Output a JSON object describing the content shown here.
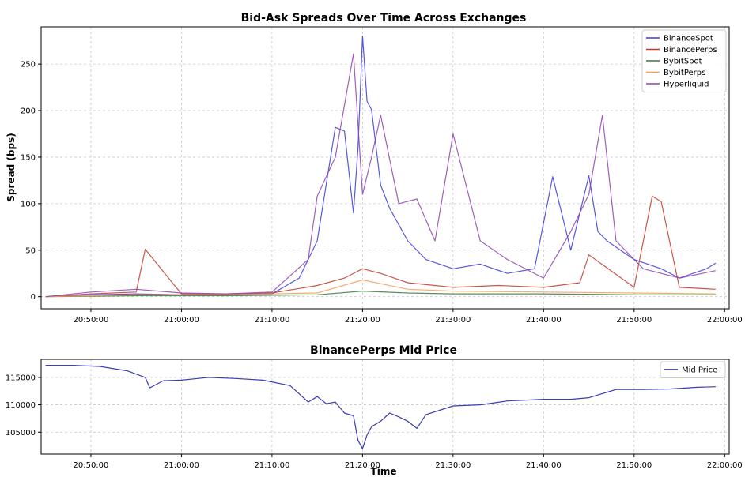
{
  "chart_data": [
    {
      "type": "line",
      "title": "Bid-Ask Spreads Over Time Across Exchanges",
      "xlabel": "",
      "ylabel": "Spread (bps)",
      "xlim": [
        "20:44:30",
        "22:00:30"
      ],
      "ylim": [
        -13,
        290
      ],
      "x_ticks": [
        "20:50:00",
        "21:00:00",
        "21:10:00",
        "21:20:00",
        "21:30:00",
        "21:40:00",
        "21:50:00",
        "22:00:00"
      ],
      "y_ticks": [
        0,
        50,
        100,
        150,
        200,
        250
      ],
      "grid": true,
      "legend_position": "top-right",
      "series": [
        {
          "name": "BinanceSpot",
          "color": "#3b3bd6",
          "x": [
            "20:45:00",
            "20:50:00",
            "20:55:00",
            "21:00:00",
            "21:05:00",
            "21:10:00",
            "21:13:00",
            "21:15:00",
            "21:17:00",
            "21:18:00",
            "21:19:00",
            "21:19:30",
            "21:20:00",
            "21:20:30",
            "21:21:00",
            "21:22:00",
            "21:23:00",
            "21:25:00",
            "21:27:00",
            "21:30:00",
            "21:33:00",
            "21:36:00",
            "21:39:00",
            "21:41:00",
            "21:43:00",
            "21:45:00",
            "21:46:00",
            "21:47:00",
            "21:50:00",
            "21:53:00",
            "21:55:00",
            "21:58:00",
            "21:59:00"
          ],
          "y": [
            0,
            2,
            3,
            2,
            2,
            3,
            20,
            60,
            182,
            178,
            90,
            160,
            280,
            210,
            201,
            120,
            95,
            60,
            40,
            30,
            35,
            25,
            30,
            129,
            50,
            130,
            70,
            60,
            40,
            30,
            20,
            30,
            36
          ]
        },
        {
          "name": "BinancePerps",
          "color": "#c0392b",
          "x": [
            "20:45:00",
            "20:50:00",
            "20:55:00",
            "20:56:00",
            "21:00:00",
            "21:05:00",
            "21:10:00",
            "21:15:00",
            "21:18:00",
            "21:20:00",
            "21:22:00",
            "21:25:00",
            "21:30:00",
            "21:35:00",
            "21:40:00",
            "21:44:00",
            "21:45:00",
            "21:50:00",
            "21:52:00",
            "21:53:00",
            "21:55:00",
            "21:59:00"
          ],
          "y": [
            0,
            3,
            5,
            51,
            3,
            3,
            4,
            12,
            20,
            30,
            25,
            15,
            10,
            12,
            10,
            15,
            45,
            10,
            108,
            102,
            10,
            8
          ]
        },
        {
          "name": "BybitSpot",
          "color": "#3a7a3a",
          "x": [
            "20:45:00",
            "20:55:00",
            "21:05:00",
            "21:15:00",
            "21:20:00",
            "21:25:00",
            "21:30:00",
            "21:40:00",
            "21:50:00",
            "21:59:00"
          ],
          "y": [
            0,
            1,
            1,
            2,
            6,
            4,
            3,
            3,
            2,
            2
          ]
        },
        {
          "name": "BybitPerps",
          "color": "#f0a060",
          "x": [
            "20:45:00",
            "20:55:00",
            "21:05:00",
            "21:15:00",
            "21:20:00",
            "21:25:00",
            "21:30:00",
            "21:40:00",
            "21:50:00",
            "21:59:00"
          ],
          "y": [
            0,
            2,
            2,
            4,
            18,
            8,
            6,
            5,
            4,
            3
          ]
        },
        {
          "name": "Hyperliquid",
          "color": "#8e44ad",
          "x": [
            "20:45:00",
            "20:50:00",
            "20:55:00",
            "21:00:00",
            "21:05:00",
            "21:10:00",
            "21:14:00",
            "21:15:00",
            "21:17:00",
            "21:19:00",
            "21:20:00",
            "21:21:00",
            "21:22:00",
            "21:24:00",
            "21:26:00",
            "21:28:00",
            "21:30:00",
            "21:33:00",
            "21:36:00",
            "21:40:00",
            "21:43:00",
            "21:45:00",
            "21:46:30",
            "21:48:00",
            "21:51:00",
            "21:55:00",
            "21:59:00"
          ],
          "y": [
            0,
            5,
            8,
            4,
            3,
            5,
            40,
            108,
            150,
            261,
            110,
            150,
            195,
            100,
            105,
            60,
            175,
            60,
            40,
            20,
            70,
            110,
            195,
            60,
            30,
            20,
            28
          ]
        }
      ]
    },
    {
      "type": "line",
      "title": "BinancePerps Mid Price",
      "xlabel": "Time",
      "ylabel": "",
      "xlim": [
        "20:44:30",
        "22:00:30"
      ],
      "ylim": [
        101000,
        118300
      ],
      "x_ticks": [
        "20:50:00",
        "21:00:00",
        "21:10:00",
        "21:20:00",
        "21:30:00",
        "21:40:00",
        "21:50:00",
        "22:00:00"
      ],
      "y_ticks": [
        105000,
        110000,
        115000
      ],
      "grid": true,
      "legend_position": "top-right",
      "series": [
        {
          "name": "Mid Price",
          "color": "#1a1aa6",
          "x": [
            "20:45:00",
            "20:48:00",
            "20:51:00",
            "20:54:00",
            "20:56:00",
            "20:56:30",
            "20:58:00",
            "21:00:00",
            "21:03:00",
            "21:06:00",
            "21:09:00",
            "21:12:00",
            "21:13:00",
            "21:14:00",
            "21:15:00",
            "21:16:00",
            "21:17:00",
            "21:18:00",
            "21:19:00",
            "21:19:30",
            "21:20:00",
            "21:20:30",
            "21:21:00",
            "21:22:00",
            "21:23:00",
            "21:24:00",
            "21:25:00",
            "21:26:00",
            "21:27:00",
            "21:30:00",
            "21:33:00",
            "21:36:00",
            "21:40:00",
            "21:43:00",
            "21:45:00",
            "21:48:00",
            "21:51:00",
            "21:54:00",
            "21:57:00",
            "21:59:00"
          ],
          "y": [
            117200,
            117200,
            117000,
            116200,
            115000,
            113100,
            114400,
            114500,
            115000,
            114800,
            114500,
            113500,
            112000,
            110500,
            111500,
            110200,
            110500,
            108500,
            108000,
            103500,
            102000,
            104500,
            106000,
            107000,
            108500,
            107800,
            107000,
            105700,
            108200,
            109800,
            110000,
            110700,
            111000,
            111000,
            111300,
            112800,
            112800,
            112900,
            113200,
            113300
          ]
        }
      ]
    }
  ]
}
